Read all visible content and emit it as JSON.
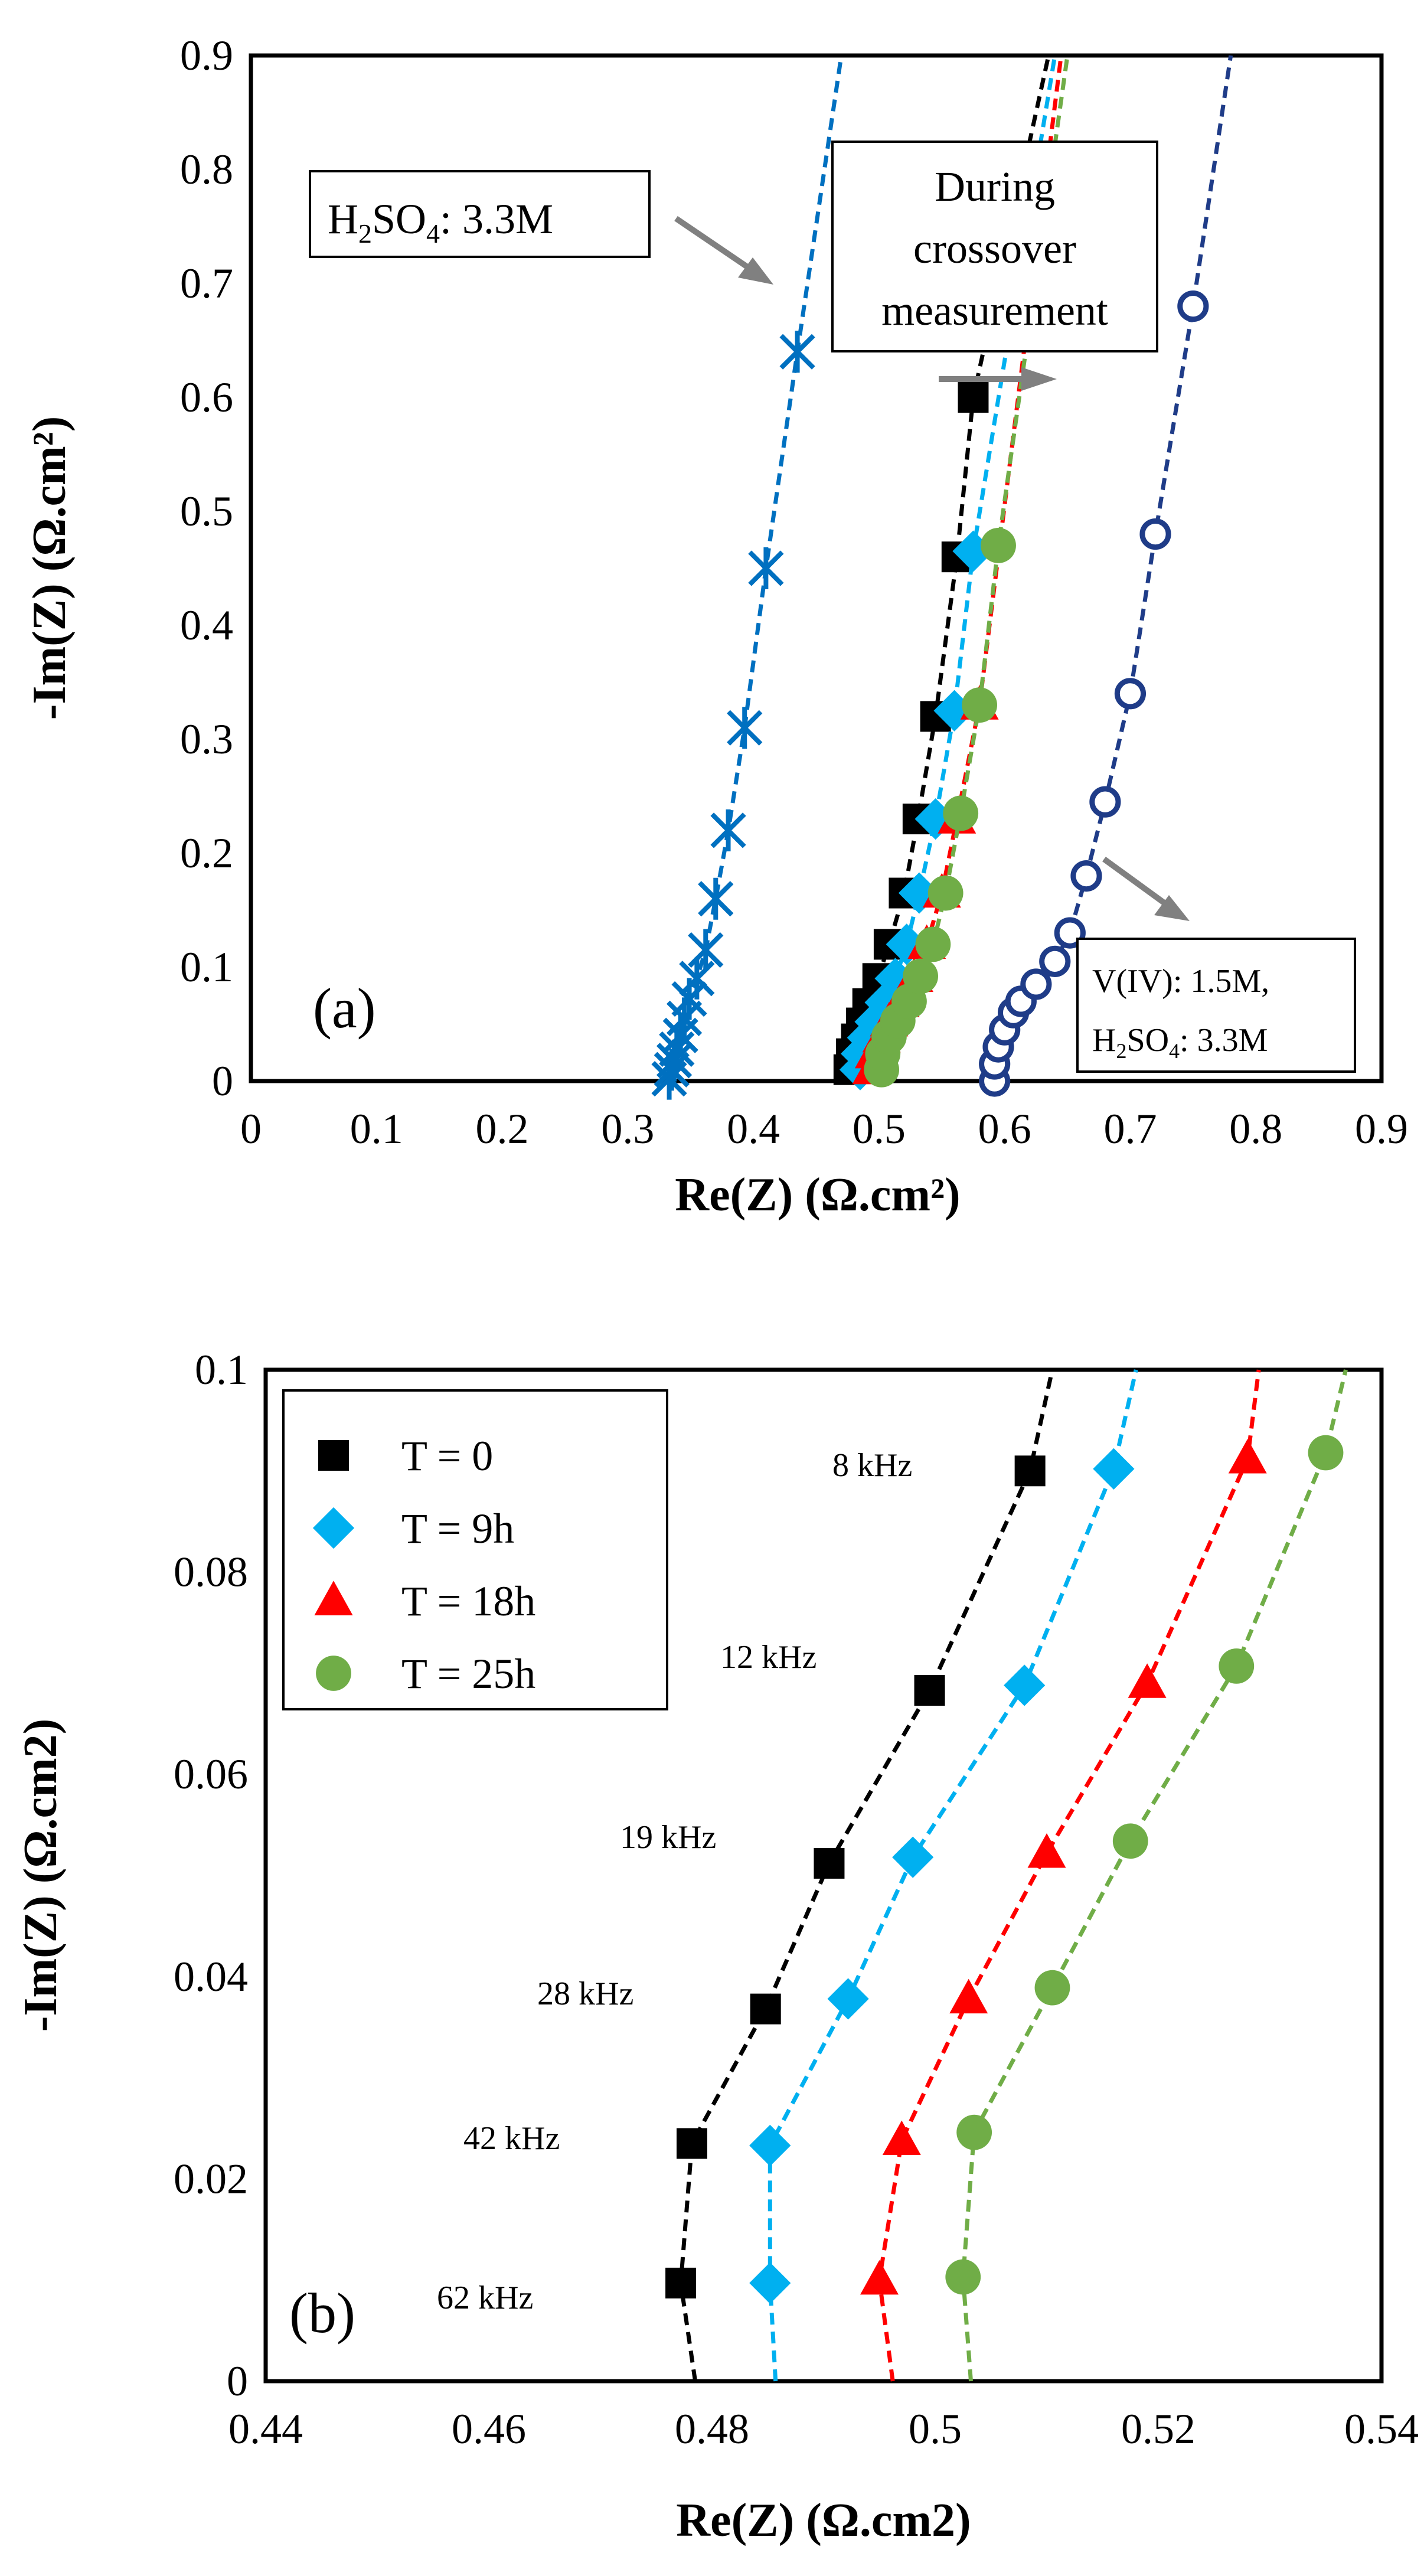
{
  "chart_data": [
    {
      "type": "scatter",
      "panel_label": "(a)",
      "xlabel": "Re(Z) (Ω.cm²)",
      "ylabel": "-Im(Z) (Ω.cm²)",
      "xlim": [
        0,
        0.9
      ],
      "ylim": [
        0,
        0.9
      ],
      "x_ticks": [
        "0",
        "0.1",
        "0.2",
        "0.3",
        "0.4",
        "0.5",
        "0.6",
        "0.7",
        "0.8",
        "0.9"
      ],
      "y_ticks": [
        "0",
        "0.1",
        "0.2",
        "0.3",
        "0.4",
        "0.5",
        "0.6",
        "0.7",
        "0.8",
        "0.9"
      ],
      "grid": false,
      "series": [
        {
          "color": "#0070C0",
          "marker": "asterisk",
          "x": [
            0.333,
            0.335,
            0.337,
            0.339,
            0.342,
            0.345,
            0.349,
            0.355,
            0.362,
            0.37,
            0.38,
            0.393,
            0.41,
            0.435
          ],
          "y": [
            0.002,
            0.01,
            0.018,
            0.028,
            0.04,
            0.055,
            0.072,
            0.09,
            0.115,
            0.16,
            0.22,
            0.31,
            0.45,
            0.64
          ],
          "extend": [
            [
              0.47,
              0.9
            ]
          ]
        },
        {
          "color": "#000000",
          "marker": "square",
          "x": [
            0.476,
            0.478,
            0.482,
            0.486,
            0.491,
            0.499,
            0.508,
            0.52,
            0.531,
            0.545,
            0.562,
            0.575
          ],
          "y": [
            0.01,
            0.024,
            0.037,
            0.051,
            0.068,
            0.09,
            0.12,
            0.165,
            0.23,
            0.32,
            0.46,
            0.6
          ],
          "extend": [
            [
              0.635,
              0.9
            ]
          ]
        },
        {
          "color": "#00B0F0",
          "marker": "diamond",
          "x": [
            0.485,
            0.486,
            0.491,
            0.497,
            0.505,
            0.513,
            0.522,
            0.532,
            0.545,
            0.56,
            0.575
          ],
          "y": [
            0.01,
            0.024,
            0.038,
            0.052,
            0.069,
            0.09,
            0.12,
            0.165,
            0.23,
            0.325,
            0.465
          ],
          "extend": [
            [
              0.64,
              0.9
            ]
          ]
        },
        {
          "color": "#FF0000",
          "marker": "triangle",
          "x": [
            0.494,
            0.496,
            0.502,
            0.508,
            0.517,
            0.528,
            0.538,
            0.55,
            0.562,
            0.58
          ],
          "y": [
            0.01,
            0.024,
            0.038,
            0.052,
            0.069,
            0.091,
            0.12,
            0.165,
            0.23,
            0.33
          ],
          "extend": [
            [
              0.645,
              0.9
            ]
          ]
        },
        {
          "color": "#70AD47",
          "marker": "circle",
          "x": [
            0.502,
            0.503,
            0.508,
            0.515,
            0.524,
            0.533,
            0.543,
            0.553,
            0.565,
            0.58,
            0.595
          ],
          "y": [
            0.01,
            0.024,
            0.039,
            0.053,
            0.07,
            0.092,
            0.12,
            0.165,
            0.235,
            0.33,
            0.47
          ],
          "extend": [
            [
              0.65,
              0.9
            ]
          ]
        },
        {
          "color": "#1F3C88",
          "marker": "open-circle",
          "x": [
            0.592,
            0.592,
            0.595,
            0.6,
            0.607,
            0.613,
            0.625,
            0.64,
            0.652,
            0.665,
            0.68,
            0.7,
            0.72,
            0.75
          ],
          "y": [
            0.0,
            0.015,
            0.03,
            0.045,
            0.06,
            0.07,
            0.085,
            0.105,
            0.13,
            0.18,
            0.245,
            0.34,
            0.48,
            0.68
          ],
          "extend": [
            [
              0.78,
              0.9
            ]
          ]
        }
      ],
      "annotations": [
        {
          "id": "acid",
          "text_main": "H",
          "sub1": "2",
          "mid": "SO",
          "sub2": "4",
          "tail": ": 3.3M"
        },
        {
          "id": "crossover",
          "lines": [
            "During",
            "crossover",
            "measurement"
          ]
        },
        {
          "id": "vanadium",
          "line1": "V(IV): 1.5M,",
          "line2_main": "H",
          "line2_sub1": "2",
          "line2_mid": "SO",
          "line2_sub2": "4",
          "line2_tail": ": 3.3M"
        }
      ]
    },
    {
      "type": "line",
      "panel_label": "(b)",
      "xlabel": "Re(Z) (Ω.cm2)",
      "ylabel": "-Im(Z) (Ω.cm2)",
      "xlim": [
        0.44,
        0.54
      ],
      "ylim": [
        0,
        0.1
      ],
      "x_ticks": [
        "0.44",
        "0.46",
        "0.48",
        "0.5",
        "0.52",
        "0.54"
      ],
      "y_ticks": [
        "0",
        "0.02",
        "0.04",
        "0.06",
        "0.08",
        "0.1"
      ],
      "grid": false,
      "legend_position": "top-left",
      "series": [
        {
          "name": "T = 0",
          "color": "#000000",
          "marker": "square",
          "x": [
            0.4772,
            0.4782,
            0.4848,
            0.4905,
            0.4995,
            0.5085
          ],
          "y": [
            0.0097,
            0.0235,
            0.0368,
            0.0512,
            0.0683,
            0.09
          ],
          "start": [
            0.4785,
            0.0
          ],
          "end": [
            0.5105,
            0.1
          ]
        },
        {
          "name": "T = 9h",
          "color": "#00B0F0",
          "marker": "diamond",
          "x": [
            0.4852,
            0.4852,
            0.4922,
            0.498,
            0.508,
            0.516
          ],
          "y": [
            0.0097,
            0.0233,
            0.0378,
            0.0518,
            0.0688,
            0.0902
          ],
          "start": [
            0.4857,
            0.0
          ],
          "end": [
            0.518,
            0.1
          ]
        },
        {
          "name": "T = 18h",
          "color": "#FF0000",
          "marker": "triangle",
          "x": [
            0.495,
            0.497,
            0.503,
            0.51,
            0.519,
            0.528
          ],
          "y": [
            0.01,
            0.0238,
            0.0378,
            0.0522,
            0.069,
            0.0912
          ],
          "start": [
            0.4962,
            0.0
          ],
          "end": [
            0.529,
            0.1
          ]
        },
        {
          "name": "T = 25h",
          "color": "#70AD47",
          "marker": "circle",
          "x": [
            0.5025,
            0.5035,
            0.5105,
            0.5175,
            0.527,
            0.535
          ],
          "y": [
            0.0103,
            0.0246,
            0.0389,
            0.0534,
            0.0707,
            0.0918
          ],
          "start": [
            0.5032,
            0.0
          ],
          "end": [
            0.5368,
            0.1
          ]
        }
      ],
      "frequency_labels": [
        "8 kHz",
        "12 kHz",
        "19 kHz",
        "28 kHz",
        "42 kHz",
        "62 kHz"
      ]
    }
  ]
}
